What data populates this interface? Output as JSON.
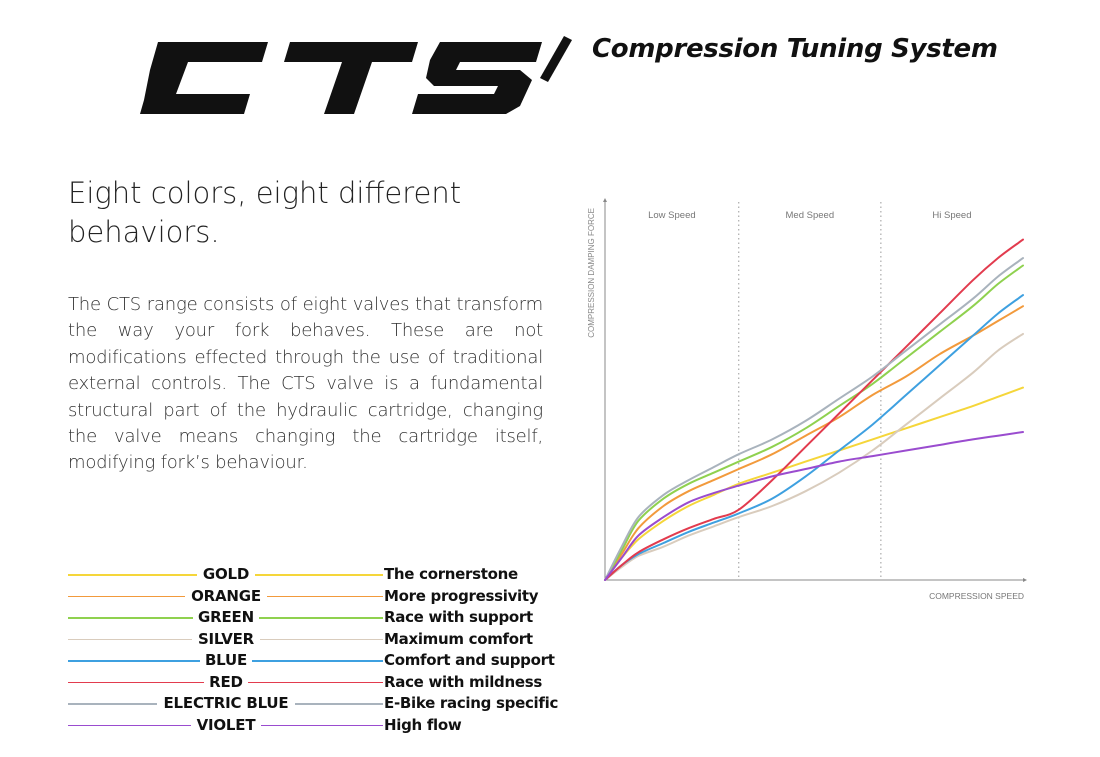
{
  "brand": {
    "logo_text": "CTS",
    "subtitle": "Compression Tuning System"
  },
  "headline": "Eight colors, eight different behaviors.",
  "body": "The CTS range consists of eight valves that transform the way your fork behaves. These are not modifications effected through the use of traditional external controls. The CTS valve is a fundamental structural part of the hydraulic cartridge, changing the valve means changing the cartridge itself, modifying fork’s behaviour.",
  "legend": [
    {
      "name": "GOLD",
      "description": "The cornerstone",
      "color": "#f5d63a"
    },
    {
      "name": "ORANGE",
      "description": "More progressivity",
      "color": "#f29a3c"
    },
    {
      "name": "GREEN",
      "description": "Race with support",
      "color": "#8fd14f"
    },
    {
      "name": "SILVER",
      "description": "Maximum comfort",
      "color": "#d9ccbd"
    },
    {
      "name": "BLUE",
      "description": "Comfort and support",
      "color": "#3ea0e0"
    },
    {
      "name": "RED",
      "description": "Race with mildness",
      "color": "#e23b4e"
    },
    {
      "name": "ELECTRIC BLUE",
      "description": "E-Bike racing specific",
      "color": "#a9b3bd"
    },
    {
      "name": "VIOLET",
      "description": "High flow",
      "color": "#9a4ccf"
    }
  ],
  "chart_data": {
    "type": "line",
    "xlabel": "COMPRESSION SPEED",
    "ylabel": "COMPRESSION DAMPING FORCE",
    "xlim": [
      0,
      100
    ],
    "ylim": [
      0,
      100
    ],
    "grid": false,
    "ticks": false,
    "regions": [
      {
        "label": "Low Speed",
        "from": 0,
        "to": 32
      },
      {
        "label": "Med Speed",
        "from": 32,
        "to": 66
      },
      {
        "label": "Hi Speed",
        "from": 66,
        "to": 100
      }
    ],
    "x": [
      0,
      4,
      8,
      14,
      20,
      26,
      32,
      40,
      48,
      56,
      64,
      72,
      80,
      88,
      94,
      100
    ],
    "series": [
      {
        "name": "GOLD",
        "values": [
          0,
          6,
          11,
          16,
          20,
          23,
          26,
          29,
          32,
          35,
          38,
          41,
          44,
          47,
          49.5,
          52
        ]
      },
      {
        "name": "ORANGE",
        "values": [
          0,
          7,
          14,
          20,
          24,
          27,
          30,
          34,
          39,
          44,
          50,
          55,
          61,
          66,
          70,
          74
        ]
      },
      {
        "name": "GREEN",
        "values": [
          0,
          8,
          16,
          22,
          26,
          29,
          32,
          36,
          41,
          47,
          53,
          60,
          67,
          74,
          80,
          85
        ]
      },
      {
        "name": "SILVER",
        "values": [
          0,
          3.5,
          6.5,
          9,
          12,
          14.5,
          17,
          20,
          24,
          29,
          35,
          42,
          49,
          56,
          62,
          66.5
        ]
      },
      {
        "name": "BLUE",
        "values": [
          0,
          4,
          7,
          10,
          13,
          15.5,
          18,
          22,
          28,
          35,
          42,
          50,
          58,
          66,
          72,
          77
        ]
      },
      {
        "name": "RED",
        "values": [
          0,
          4,
          7.5,
          11,
          14,
          16.5,
          19,
          27,
          36,
          45,
          54,
          63,
          72,
          81,
          87,
          92
        ]
      },
      {
        "name": "ELECTRIC BLUE",
        "values": [
          0,
          9,
          17,
          23,
          27,
          30.5,
          34,
          38,
          43,
          49,
          55,
          62,
          69,
          76,
          82,
          87
        ]
      },
      {
        "name": "VIOLET",
        "values": [
          0,
          6,
          12,
          17,
          21,
          23.5,
          25.5,
          28,
          30,
          32,
          33.5,
          35,
          36.5,
          38,
          39,
          40
        ]
      }
    ]
  }
}
